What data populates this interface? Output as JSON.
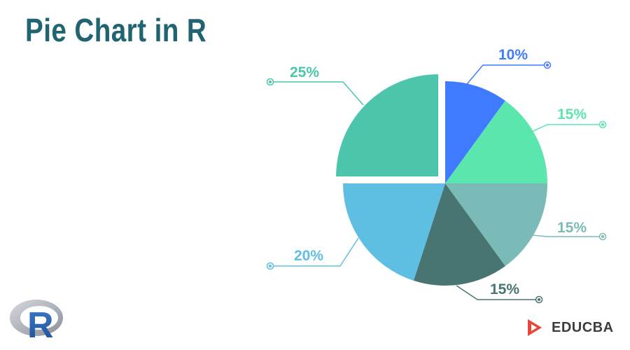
{
  "title": "Pie Chart in R",
  "brand": {
    "name": "EDUCBA",
    "logo_text": "R",
    "accent_color": "#e8463a"
  },
  "chart_data": {
    "type": "pie",
    "title": "Pie Chart in R",
    "categories": [
      "",
      "",
      "",
      "",
      "",
      ""
    ],
    "values": [
      10,
      15,
      15,
      15,
      20,
      25
    ],
    "labels": [
      "10%",
      "15%",
      "15%",
      "15%",
      "20%",
      "25%"
    ],
    "colors": [
      "#3f7bff",
      "#5ae6ac",
      "#7bbbb7",
      "#487472",
      "#5ebfe3",
      "#4dc5aa"
    ],
    "exploded_slice": 5,
    "start_angle_deg": 0,
    "direction": "clockwise",
    "legend": "none"
  }
}
